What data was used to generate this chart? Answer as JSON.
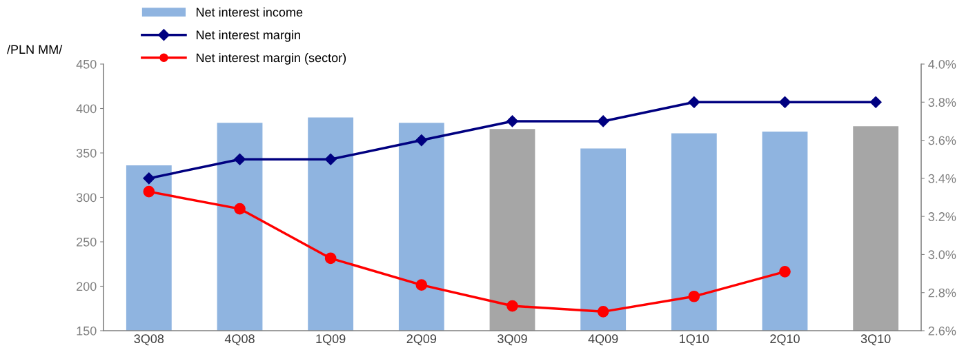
{
  "chart_data": {
    "type": "bar",
    "ylabel": "/PLN MM/",
    "categories": [
      "3Q08",
      "4Q08",
      "1Q09",
      "2Q09",
      "3Q09",
      "4Q09",
      "1Q10",
      "2Q10",
      "3Q10"
    ],
    "series": [
      {
        "name": "Net interest income",
        "color": "#8fb4e0",
        "colors": [
          "#8fb4e0",
          "#8fb4e0",
          "#8fb4e0",
          "#8fb4e0",
          "#a6a6a6",
          "#8fb4e0",
          "#8fb4e0",
          "#8fb4e0",
          "#a6a6a6"
        ],
        "values": [
          336,
          384,
          390,
          384,
          377,
          355,
          372,
          374,
          380
        ]
      },
      {
        "name": "Net interest margin",
        "type": "line",
        "axis": "y2",
        "color": "#000080",
        "marker": "diamond",
        "values": [
          3.4,
          3.5,
          3.5,
          3.6,
          3.7,
          3.7,
          3.8,
          3.8,
          3.8
        ]
      },
      {
        "name": "Net interest margin (sector)",
        "type": "line",
        "axis": "y2",
        "color": "#ff0000",
        "marker": "circle",
        "values": [
          3.33,
          3.24,
          2.98,
          2.84,
          2.73,
          2.7,
          2.78,
          2.91,
          null
        ]
      }
    ],
    "ylim": [
      150,
      450
    ],
    "yticks": [
      150,
      200,
      250,
      300,
      350,
      400,
      450
    ],
    "y2lim": [
      2.6,
      4.0
    ],
    "y2ticks": [
      {
        "value": 2.6,
        "label": "2.6%"
      },
      {
        "value": 2.8,
        "label": "2.8%"
      },
      {
        "value": 3.0,
        "label": "3.0%"
      },
      {
        "value": 3.2,
        "label": "3.2%"
      },
      {
        "value": 3.4,
        "label": "3.4%"
      },
      {
        "value": 3.6,
        "label": "3.6%"
      },
      {
        "value": 3.8,
        "label": "3.8%"
      },
      {
        "value": 4.0,
        "label": "4.0%"
      }
    ],
    "grid": false,
    "legend": "top left"
  }
}
